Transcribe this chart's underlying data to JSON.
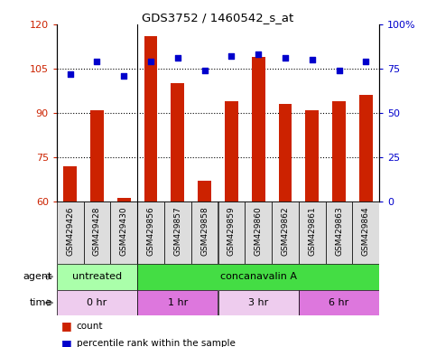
{
  "title": "GDS3752 / 1460542_s_at",
  "samples": [
    "GSM429426",
    "GSM429428",
    "GSM429430",
    "GSM429856",
    "GSM429857",
    "GSM429858",
    "GSM429859",
    "GSM429860",
    "GSM429862",
    "GSM429861",
    "GSM429863",
    "GSM429864"
  ],
  "bar_values": [
    72,
    91,
    61,
    116,
    100,
    67,
    94,
    109,
    93,
    91,
    94,
    96
  ],
  "dot_values": [
    72,
    79,
    71,
    79,
    81,
    74,
    82,
    83,
    81,
    80,
    74,
    79
  ],
  "ylim_left": [
    60,
    120
  ],
  "ylim_right": [
    0,
    100
  ],
  "yticks_left": [
    60,
    75,
    90,
    105,
    120
  ],
  "yticks_right": [
    0,
    25,
    50,
    75,
    100
  ],
  "bar_color": "#cc2200",
  "dot_color": "#0000cc",
  "agent_groups": [
    {
      "label": "untreated",
      "start": 0,
      "end": 3,
      "color": "#aaffaa"
    },
    {
      "label": "concanavalin A",
      "start": 3,
      "end": 12,
      "color": "#44dd44"
    }
  ],
  "time_groups": [
    {
      "label": "0 hr",
      "start": 0,
      "end": 3,
      "color": "#eeccee"
    },
    {
      "label": "1 hr",
      "start": 3,
      "end": 6,
      "color": "#dd77dd"
    },
    {
      "label": "3 hr",
      "start": 6,
      "end": 9,
      "color": "#eeccee"
    },
    {
      "label": "6 hr",
      "start": 9,
      "end": 12,
      "color": "#dd77dd"
    }
  ],
  "legend_count": "count",
  "legend_percentile": "percentile rank within the sample",
  "tick_label_color_left": "#cc2200",
  "tick_label_color_right": "#0000cc",
  "xtick_bg_color": "#dddddd",
  "group_boundary": 2.5
}
